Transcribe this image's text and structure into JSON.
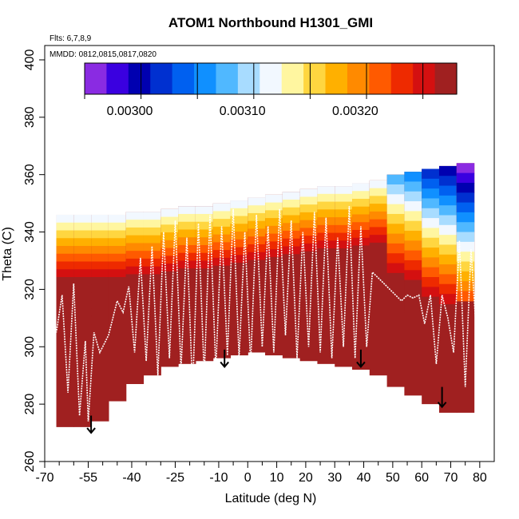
{
  "chart_data": {
    "type": "heatmap",
    "title": "ATOM1 Northbound H1301_GMI",
    "flights_note": "Flts: 6,7,8,9",
    "dates_note": "MMDD: 0812,0815,0817,0820",
    "xlabel": "Latitude (deg N)",
    "ylabel": "Theta (C)",
    "xlim": [
      -70,
      85
    ],
    "ylim": [
      260,
      405
    ],
    "x_ticks": [
      -70,
      -55,
      -40,
      -25,
      -10,
      0,
      10,
      20,
      30,
      40,
      50,
      60,
      70,
      80
    ],
    "x_tick_labels": [
      "-70",
      "-55",
      "-40",
      "-25",
      "-10",
      "0",
      "10",
      "20",
      "30",
      "40",
      "50",
      "60",
      "70",
      "80"
    ],
    "x_minor_ticks": [
      -65,
      -60,
      -50,
      -45,
      -35,
      -30,
      -20,
      -15,
      -5,
      5,
      15,
      25,
      35,
      45,
      55,
      65,
      75
    ],
    "y_ticks": [
      260,
      280,
      300,
      320,
      340,
      360,
      380,
      400
    ],
    "y_tick_labels": [
      "260",
      "280",
      "300",
      "320",
      "340",
      "360",
      "380",
      "400"
    ],
    "colorbar": {
      "colors": [
        "#8a2be2",
        "#3a00e0",
        "#0000b0",
        "#0030d0",
        "#0060f0",
        "#1090ff",
        "#50b8ff",
        "#a8dcff",
        "#f2f8ff",
        "#fff6a0",
        "#ffd640",
        "#ffb000",
        "#ff8a00",
        "#ff5a00",
        "#ee2a00",
        "#d41010",
        "#a02020"
      ],
      "value_min": 0.00296,
      "value_max": 0.00329,
      "tick_values": [
        0.003,
        0.0031,
        0.0032
      ],
      "tick_labels": [
        "0.00300",
        "0.00310",
        "0.00320"
      ],
      "divider_values": [
        0.00296,
        0.00301,
        0.00306,
        0.00311,
        0.00316,
        0.00321,
        0.00326
      ]
    },
    "field": {
      "lat_edges": [
        -66,
        -60,
        -54,
        -48,
        -42,
        -36,
        -30,
        -24,
        -18,
        -12,
        -6,
        0,
        6,
        12,
        18,
        24,
        30,
        36,
        42,
        48,
        54,
        60,
        66,
        72,
        78
      ],
      "theta_top": [
        346,
        346,
        346,
        346,
        347,
        347,
        348,
        349,
        349,
        350,
        351,
        352,
        353,
        354,
        355,
        356,
        356,
        357,
        358,
        360,
        361,
        362,
        363,
        364
      ],
      "theta_bottom": [
        272,
        272,
        274,
        281,
        287,
        290,
        293,
        294,
        295,
        296,
        297,
        298,
        297,
        296,
        295,
        294,
        293,
        292,
        290,
        286,
        283,
        280,
        277,
        277
      ]
    },
    "data_boundary": [
      [
        -68,
        272
      ],
      [
        -55,
        272
      ],
      [
        -48,
        274
      ],
      [
        -40,
        287
      ],
      [
        -25,
        293
      ],
      [
        -18,
        294
      ],
      [
        -8,
        294
      ],
      [
        0,
        295
      ],
      [
        10,
        298
      ],
      [
        20,
        296
      ],
      [
        30,
        294
      ],
      [
        40,
        292
      ],
      [
        48,
        287
      ],
      [
        58,
        282
      ],
      [
        70,
        277
      ],
      [
        76,
        276
      ],
      [
        78,
        277
      ],
      [
        80,
        280
      ],
      [
        80,
        360
      ],
      [
        79,
        367
      ],
      [
        76,
        367
      ],
      [
        70,
        362
      ],
      [
        60,
        359
      ],
      [
        50,
        357
      ],
      [
        40,
        354
      ],
      [
        30,
        353
      ],
      [
        20,
        351
      ],
      [
        10,
        349
      ],
      [
        0,
        347
      ],
      [
        -10,
        345
      ],
      [
        -20,
        344
      ],
      [
        -30,
        343
      ],
      [
        -40,
        343
      ],
      [
        -50,
        342
      ],
      [
        -58,
        342
      ],
      [
        -66,
        343
      ],
      [
        -68,
        320
      ]
    ],
    "arrows": [
      {
        "lat": -54,
        "theta_top": 276,
        "theta_tip": 270
      },
      {
        "lat": -8,
        "theta_top": 299,
        "theta_tip": 293
      },
      {
        "lat": 39,
        "theta_top": 299,
        "theta_tip": 293
      },
      {
        "lat": 67,
        "theta_top": 286,
        "theta_tip": 279
      }
    ],
    "flight_track": {
      "lat": [
        -68,
        -66,
        -64,
        -62,
        -60,
        -58,
        -56,
        -55,
        -53,
        -51,
        -48,
        -45,
        -43,
        -41,
        -39,
        -37,
        -35,
        -33,
        -31,
        -29,
        -27,
        -25,
        -23,
        -21,
        -19,
        -17,
        -15,
        -13,
        -11,
        -9,
        -7,
        -5,
        -3,
        -1,
        1,
        3,
        5,
        7,
        9,
        11,
        13,
        15,
        17,
        19,
        21,
        23,
        25,
        27,
        29,
        31,
        33,
        35,
        37,
        39,
        41,
        43,
        45,
        47,
        49,
        51,
        53,
        55,
        57,
        59,
        61,
        63,
        65,
        67,
        69,
        71,
        73,
        75,
        77,
        79
      ],
      "theta": [
        313,
        305,
        318,
        284,
        322,
        276,
        302,
        274,
        305,
        298,
        304,
        316,
        312,
        321,
        298,
        331,
        295,
        335,
        290,
        340,
        296,
        344,
        292,
        338,
        285,
        343,
        290,
        346,
        292,
        342,
        297,
        348,
        296,
        340,
        294,
        346,
        300,
        342,
        298,
        348,
        304,
        344,
        296,
        340,
        300,
        347,
        298,
        345,
        296,
        338,
        300,
        349,
        296,
        342,
        300,
        326,
        324,
        322,
        320,
        318,
        316,
        318,
        317,
        318,
        308,
        318,
        294,
        318,
        310,
        298,
        337,
        286,
        334,
        302
      ]
    }
  }
}
